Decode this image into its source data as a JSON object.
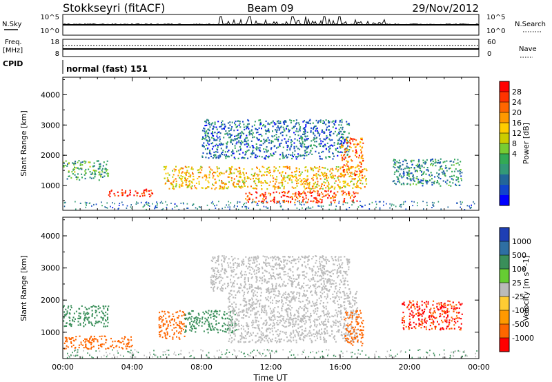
{
  "header": {
    "station": "Stokkseyri (fitACF)",
    "beam": "Beam 09",
    "date": "29/Nov/2012"
  },
  "noise_panel": {
    "left_label": "N.Sky",
    "left_ticks": [
      "10^5",
      "10^0"
    ],
    "right_label": "N.Search",
    "right_ticks": [
      "10^5",
      "10^0"
    ]
  },
  "freq_panel": {
    "left_label_line1": "Freq.",
    "left_label_line2": "[MHz]",
    "left_ticks": [
      "18",
      "8"
    ],
    "right_label": "Nave",
    "right_ticks": [
      "60",
      "0"
    ]
  },
  "cpid": {
    "label": "CPID",
    "value": "normal (fast) 151"
  },
  "chart_data": [
    {
      "type": "heatmap",
      "name": "power",
      "ylabel": "Slant Range [km]",
      "ylim": [
        180,
        4580
      ],
      "yticks": [
        "1000",
        "2000",
        "3000",
        "4000"
      ],
      "xlim": [
        0,
        24
      ],
      "colorbar": {
        "label": "Power [dB]",
        "ticks": [
          "28",
          "24",
          "20",
          "16",
          "12",
          "8",
          "4"
        ],
        "colors": [
          "#ff0000",
          "#ff3300",
          "#ff6600",
          "#ff9900",
          "#ffcc00",
          "#cccc00",
          "#77cc33",
          "#33aa55",
          "#339977",
          "#226699",
          "#1144cc",
          "#0000ff"
        ]
      },
      "echo_regions": [
        {
          "t0": 0.0,
          "t1": 2.6,
          "r0": 1200,
          "r1": 1850,
          "level": 12
        },
        {
          "t0": 2.6,
          "t1": 5.2,
          "r0": 650,
          "r1": 900,
          "level": 28
        },
        {
          "t0": 5.8,
          "t1": 17.5,
          "r0": 900,
          "r1": 1650,
          "level": 20
        },
        {
          "t0": 10.5,
          "t1": 17.0,
          "r0": 450,
          "r1": 850,
          "level": 26
        },
        {
          "t0": 8.0,
          "t1": 16.5,
          "r0": 1900,
          "r1": 3200,
          "level": 8
        },
        {
          "t0": 16.0,
          "t1": 17.3,
          "r0": 1300,
          "r1": 2600,
          "level": 24
        },
        {
          "t0": 19.0,
          "t1": 23.0,
          "r0": 1000,
          "r1": 1900,
          "level": 10
        }
      ]
    },
    {
      "type": "heatmap",
      "name": "velocity",
      "ylabel": "Slant Range [km]",
      "ylim": [
        180,
        4580
      ],
      "yticks": [
        "1000",
        "2000",
        "3000",
        "4000"
      ],
      "xlim": [
        0,
        24
      ],
      "xlabel": "Time UT",
      "xticks": [
        "00:00",
        "04:00",
        "08:00",
        "12:00",
        "16:00",
        "20:00",
        "00:00"
      ],
      "colorbar": {
        "label": "Velocity [m s^-1]",
        "ticks": [
          "1000",
          "500",
          "100",
          "25",
          "-25",
          "-100",
          "-500",
          "-1000"
        ],
        "colors": [
          "#1e3fb4",
          "#2e6fa3",
          "#3a8f5a",
          "#66cc33",
          "#bbbbbb",
          "#ffcc33",
          "#ff9900",
          "#ff6600",
          "#ff0000"
        ]
      },
      "echo_regions": [
        {
          "t0": 0.0,
          "t1": 2.6,
          "r0": 1200,
          "r1": 1850,
          "level": 100
        },
        {
          "t0": 0.0,
          "t1": 4.0,
          "r0": 500,
          "r1": 900,
          "level": -500
        },
        {
          "t0": 5.5,
          "t1": 7.0,
          "r0": 800,
          "r1": 1700,
          "level": -500
        },
        {
          "t0": 7.0,
          "t1": 10.0,
          "r0": 1000,
          "r1": 1700,
          "level": 100
        },
        {
          "t0": 9.5,
          "t1": 17.0,
          "r0": 700,
          "r1": 2300,
          "level": 0
        },
        {
          "t0": 8.5,
          "t1": 16.5,
          "r0": 2300,
          "r1": 3400,
          "level": 0
        },
        {
          "t0": 16.2,
          "t1": 17.3,
          "r0": 600,
          "r1": 1700,
          "level": -500
        },
        {
          "t0": 19.5,
          "t1": 23.0,
          "r0": 1100,
          "r1": 2000,
          "level": -800
        }
      ]
    }
  ]
}
